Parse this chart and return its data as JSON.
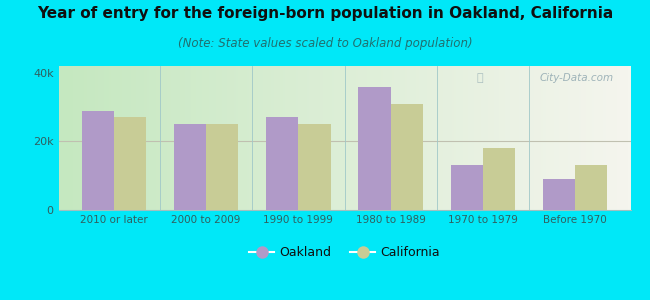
{
  "categories": [
    "2010 or later",
    "2000 to 2009",
    "1990 to 1999",
    "1980 to 1989",
    "1970 to 1979",
    "Before 1970"
  ],
  "oakland_values": [
    29000,
    25000,
    27000,
    36000,
    13000,
    9000
  ],
  "california_values": [
    27000,
    25000,
    25000,
    31000,
    18000,
    13000
  ],
  "oakland_color": "#b09ac8",
  "california_color": "#c8cc96",
  "title": "Year of entry for the foreign-born population in Oakland, California",
  "subtitle": "(Note: State values scaled to Oakland population)",
  "title_fontsize": 11,
  "subtitle_fontsize": 8.5,
  "ylim": [
    0,
    42000
  ],
  "yticks": [
    0,
    20000,
    40000
  ],
  "ytick_labels": [
    "0",
    "20k",
    "40k"
  ],
  "bg_outer": "#00e8f8",
  "bg_plot_left": "#c8e8c8",
  "bg_plot_right": "#f8f8f0",
  "bar_width": 0.35,
  "legend_labels": [
    "Oakland",
    "California"
  ],
  "watermark": "City-Data.com",
  "tick_color": "#306060",
  "title_color": "#101010",
  "subtitle_color": "#207070"
}
